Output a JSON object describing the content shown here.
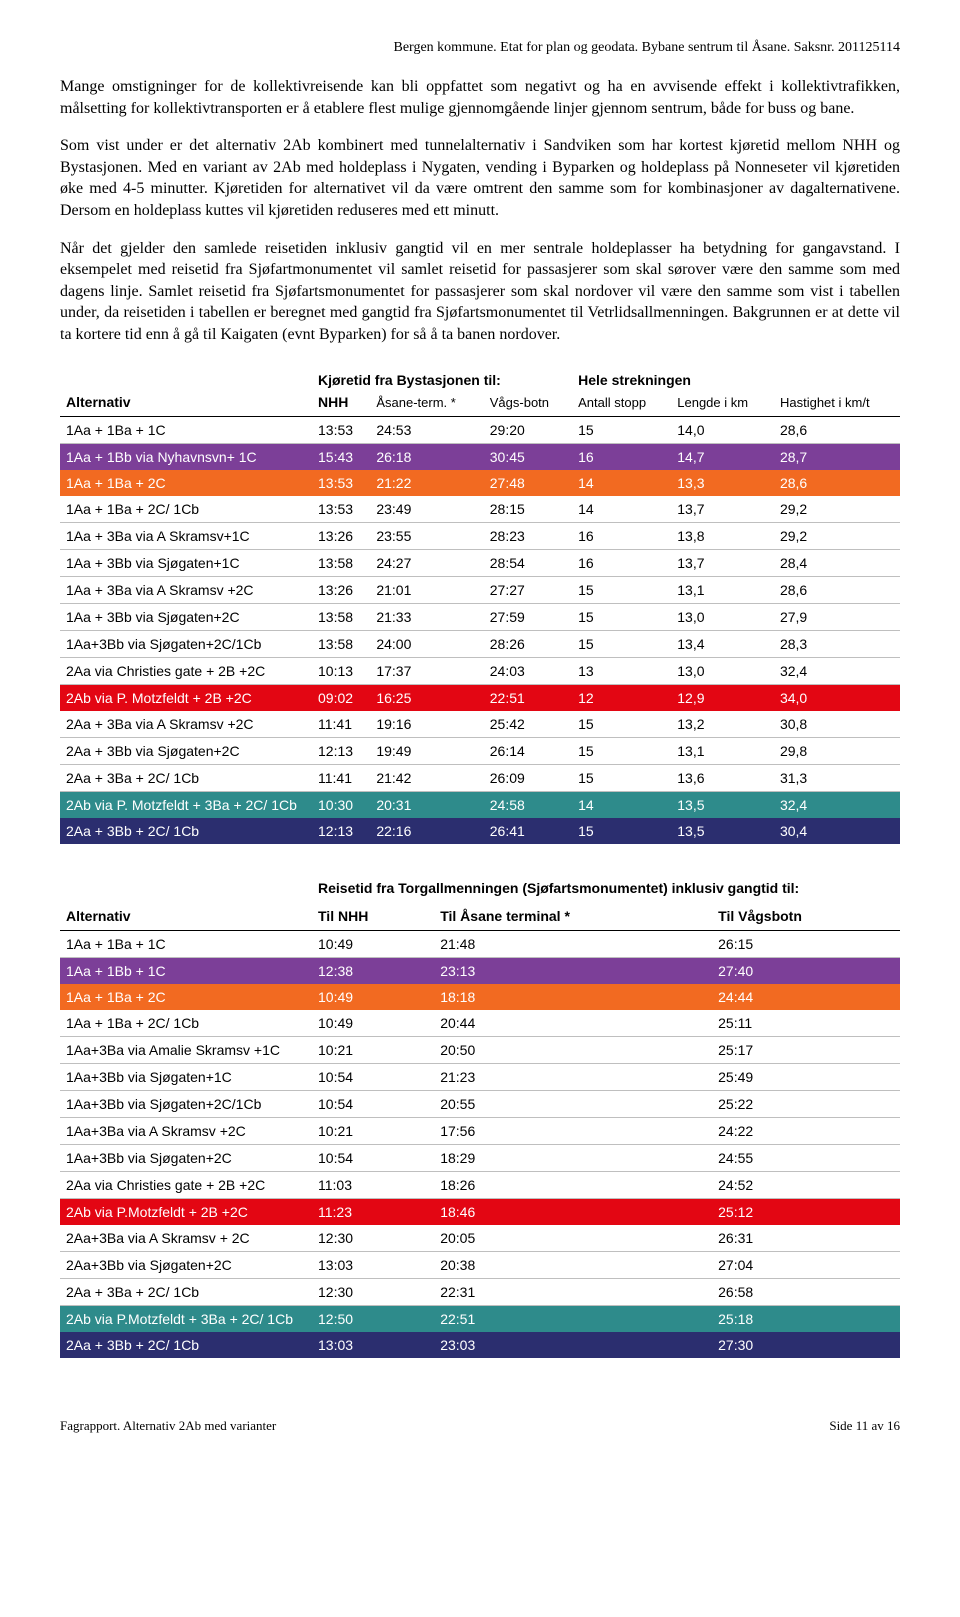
{
  "colors": {
    "purple": "#7c3f98",
    "orange": "#f26a21",
    "red": "#e30613",
    "teal": "#2e8b8b",
    "navy": "#2b2e6f",
    "header_border": "#000000",
    "row_border": "#bfbfbf"
  },
  "header": "Bergen kommune. Etat for plan og geodata. Bybane sentrum til Åsane.   Saksnr. 201125114",
  "para1": "Mange omstigninger for de kollektivreisende kan bli oppfattet som negativt og ha en avvisende effekt i kollektivtrafikken, målsetting for kollektivtransporten er å etablere flest mulige gjennomgående linjer gjennom sentrum, både for buss og bane.",
  "para2": "Som vist under er det alternativ 2Ab kombinert med tunnelalternativ i Sandviken som har kortest kjøretid mellom NHH og Bystasjonen. Med en variant av 2Ab med holdeplass i Nygaten, vending i Byparken og holdeplass på Nonneseter vil kjøretiden øke med 4-5 minutter. Kjøretiden for alternativet vil da være omtrent den samme som for kombinasjoner av dagalternativene. Dersom en holdeplass kuttes vil kjøretiden reduseres med ett minutt.",
  "para3": "Når det gjelder den samlede reisetiden inklusiv gangtid vil en mer sentrale holdeplasser ha betydning for gangavstand. I eksempelet med reisetid fra Sjøfartmonumentet vil samlet reisetid for passasjerer som skal sørover være den samme som med dagens linje. Samlet reisetid fra Sjøfartsmonumentet for passasjerer som skal nordover vil være den samme som vist i tabellen under, da reisetiden i tabellen er beregnet med gangtid fra Sjøfartsmonumentet til Vetrlidsallmenningen. Bakgrunnen er at dette vil ta kortere tid enn å gå til Kaigaten (evnt Byparken) for så å ta banen nordover.",
  "table1": {
    "group1": "Kjøretid fra Bystasjonen til:",
    "group2": "Hele strekningen",
    "h_alt": "Alternativ",
    "h_nhh": "NHH",
    "h_asane": "Åsane-term. *",
    "h_vags": "Vågs-botn",
    "h_stopp": "Antall stopp",
    "h_lengde": "Lengde i km",
    "h_hast": "Hastighet i km/t",
    "rows": [
      {
        "alt": "1Aa + 1Ba + 1C",
        "nhh": "13:53",
        "as": "24:53",
        "vb": "29:20",
        "st": "15",
        "km": "14,0",
        "kmt": "28,6",
        "bg": null
      },
      {
        "alt": "1Aa + 1Bb via Nyhavnsvn+ 1C",
        "nhh": "15:43",
        "as": "26:18",
        "vb": "30:45",
        "st": "16",
        "km": "14,7",
        "kmt": "28,7",
        "bg": "purple"
      },
      {
        "alt": "1Aa + 1Ba + 2C",
        "nhh": "13:53",
        "as": "21:22",
        "vb": "27:48",
        "st": "14",
        "km": "13,3",
        "kmt": "28,6",
        "bg": "orange"
      },
      {
        "alt": "1Aa + 1Ba + 2C/ 1Cb",
        "nhh": "13:53",
        "as": "23:49",
        "vb": "28:15",
        "st": "14",
        "km": "13,7",
        "kmt": "29,2",
        "bg": null
      },
      {
        "alt": "1Aa + 3Ba via A Skramsv+1C",
        "nhh": "13:26",
        "as": "23:55",
        "vb": "28:23",
        "st": "16",
        "km": "13,8",
        "kmt": "29,2",
        "bg": null
      },
      {
        "alt": "1Aa + 3Bb via Sjøgaten+1C",
        "nhh": "13:58",
        "as": "24:27",
        "vb": "28:54",
        "st": "16",
        "km": "13,7",
        "kmt": "28,4",
        "bg": null
      },
      {
        "alt": "1Aa + 3Ba via A Skramsv +2C",
        "nhh": "13:26",
        "as": "21:01",
        "vb": "27:27",
        "st": "15",
        "km": "13,1",
        "kmt": "28,6",
        "bg": null
      },
      {
        "alt": "1Aa + 3Bb via Sjøgaten+2C",
        "nhh": "13:58",
        "as": "21:33",
        "vb": "27:59",
        "st": "15",
        "km": "13,0",
        "kmt": "27,9",
        "bg": null
      },
      {
        "alt": "1Aa+3Bb via Sjøgaten+2C/1Cb",
        "nhh": "13:58",
        "as": "24:00",
        "vb": "28:26",
        "st": "15",
        "km": "13,4",
        "kmt": "28,3",
        "bg": null
      },
      {
        "alt": "2Aa via Christies gate + 2B +2C",
        "nhh": "10:13",
        "as": "17:37",
        "vb": "24:03",
        "st": "13",
        "km": "13,0",
        "kmt": "32,4",
        "bg": null
      },
      {
        "alt": "2Ab via P. Motzfeldt + 2B +2C",
        "nhh": "09:02",
        "as": "16:25",
        "vb": "22:51",
        "st": "12",
        "km": "12,9",
        "kmt": "34,0",
        "bg": "red"
      },
      {
        "alt": "2Aa + 3Ba via A Skramsv +2C",
        "nhh": "11:41",
        "as": "19:16",
        "vb": "25:42",
        "st": "15",
        "km": "13,2",
        "kmt": "30,8",
        "bg": null
      },
      {
        "alt": "2Aa + 3Bb via Sjøgaten+2C",
        "nhh": "12:13",
        "as": "19:49",
        "vb": "26:14",
        "st": "15",
        "km": "13,1",
        "kmt": "29,8",
        "bg": null
      },
      {
        "alt": "2Aa + 3Ba + 2C/ 1Cb",
        "nhh": "11:41",
        "as": "21:42",
        "vb": "26:09",
        "st": "15",
        "km": "13,6",
        "kmt": "31,3",
        "bg": null
      },
      {
        "alt": "2Ab via P. Motzfeldt + 3Ba + 2C/ 1Cb",
        "nhh": "10:30",
        "as": "20:31",
        "vb": "24:58",
        "st": "14",
        "km": "13,5",
        "kmt": "32,4",
        "bg": "teal"
      },
      {
        "alt": "2Aa + 3Bb + 2C/ 1Cb",
        "nhh": "12:13",
        "as": "22:16",
        "vb": "26:41",
        "st": "15",
        "km": "13,5",
        "kmt": "30,4",
        "bg": "navy"
      }
    ]
  },
  "table2": {
    "title": "Reisetid fra Torgallmenningen (Sjøfartsmonumentet) inklusiv gangtid til:",
    "h_alt": "Alternativ",
    "h_nhh": "Til NHH",
    "h_asane": "Til Åsane terminal *",
    "h_vags": "Til Vågsbotn",
    "rows": [
      {
        "alt": "1Aa + 1Ba + 1C",
        "nhh": "10:49",
        "as": "21:48",
        "vb": "26:15",
        "bg": null
      },
      {
        "alt": "1Aa + 1Bb + 1C",
        "nhh": "12:38",
        "as": "23:13",
        "vb": "27:40",
        "bg": "purple"
      },
      {
        "alt": "1Aa + 1Ba + 2C",
        "nhh": "10:49",
        "as": "18:18",
        "vb": "24:44",
        "bg": "orange"
      },
      {
        "alt": "1Aa + 1Ba + 2C/ 1Cb",
        "nhh": "10:49",
        "as": "20:44",
        "vb": "25:11",
        "bg": null
      },
      {
        "alt": "1Aa+3Ba via Amalie Skramsv +1C",
        "nhh": "10:21",
        "as": "20:50",
        "vb": "25:17",
        "bg": null
      },
      {
        "alt": "1Aa+3Bb via Sjøgaten+1C",
        "nhh": "10:54",
        "as": "21:23",
        "vb": "25:49",
        "bg": null
      },
      {
        "alt": "1Aa+3Bb via Sjøgaten+2C/1Cb",
        "nhh": "10:54",
        "as": "20:55",
        "vb": "25:22",
        "bg": null
      },
      {
        "alt": "1Aa+3Ba via A Skramsv +2C",
        "nhh": "10:21",
        "as": "17:56",
        "vb": "24:22",
        "bg": null
      },
      {
        "alt": "1Aa+3Bb via Sjøgaten+2C",
        "nhh": "10:54",
        "as": "18:29",
        "vb": "24:55",
        "bg": null
      },
      {
        "alt": "2Aa via Christies gate + 2B +2C",
        "nhh": "11:03",
        "as": "18:26",
        "vb": "24:52",
        "bg": null
      },
      {
        "alt": "2Ab via P.Motzfeldt + 2B +2C",
        "nhh": "11:23",
        "as": "18:46",
        "vb": "25:12",
        "bg": "red"
      },
      {
        "alt": "2Aa+3Ba via A Skramsv + 2C",
        "nhh": "12:30",
        "as": "20:05",
        "vb": "26:31",
        "bg": null
      },
      {
        "alt": "2Aa+3Bb via Sjøgaten+2C",
        "nhh": "13:03",
        "as": "20:38",
        "vb": "27:04",
        "bg": null
      },
      {
        "alt": "2Aa + 3Ba + 2C/ 1Cb",
        "nhh": "12:30",
        "as": "22:31",
        "vb": "26:58",
        "bg": null
      },
      {
        "alt": "2Ab via P.Motzfeldt + 3Ba + 2C/ 1Cb",
        "nhh": "12:50",
        "as": "22:51",
        "vb": "25:18",
        "bg": "teal"
      },
      {
        "alt": "2Aa + 3Bb + 2C/ 1Cb",
        "nhh": "13:03",
        "as": "23:03",
        "vb": "27:30",
        "bg": "navy"
      }
    ]
  },
  "footer_left": "Fagrapport. Alternativ 2Ab med varianter",
  "footer_right": "Side 11 av 16"
}
